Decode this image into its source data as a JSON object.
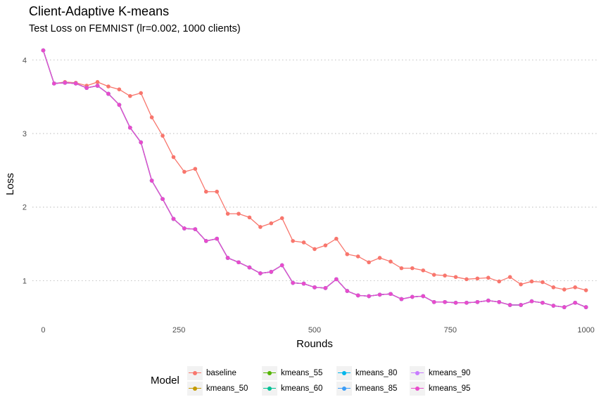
{
  "chart_data": {
    "type": "line",
    "title": "Client-Adaptive K-means",
    "subtitle": "Test Loss on FEMNIST (lr=0.002, 1000 clients)",
    "xlabel": "Rounds",
    "ylabel": "Loss",
    "xlim": [
      -20,
      1020
    ],
    "ylim": [
      0.45,
      4.28
    ],
    "x_ticks": [
      0,
      250,
      500,
      750,
      1000
    ],
    "y_ticks": [
      1,
      2,
      3,
      4
    ],
    "grid": "horizontal-dotted",
    "legend_title": "Model",
    "legend_position": "bottom",
    "x": [
      0,
      20,
      40,
      60,
      80,
      100,
      120,
      140,
      160,
      180,
      200,
      220,
      240,
      260,
      280,
      300,
      320,
      340,
      360,
      380,
      400,
      420,
      440,
      460,
      480,
      500,
      520,
      540,
      560,
      580,
      600,
      620,
      640,
      660,
      680,
      700,
      720,
      740,
      760,
      780,
      800,
      820,
      840,
      860,
      880,
      900,
      920,
      940,
      960,
      980,
      1000
    ],
    "series": [
      {
        "name": "baseline",
        "color": "#F8766D",
        "values": [
          4.13,
          3.68,
          3.7,
          3.69,
          3.65,
          3.7,
          3.64,
          3.6,
          3.51,
          3.55,
          3.22,
          2.97,
          2.68,
          2.48,
          2.52,
          2.21,
          2.21,
          1.91,
          1.91,
          1.86,
          1.73,
          1.78,
          1.85,
          1.54,
          1.52,
          1.43,
          1.48,
          1.57,
          1.36,
          1.33,
          1.25,
          1.31,
          1.26,
          1.17,
          1.17,
          1.14,
          1.08,
          1.07,
          1.05,
          1.02,
          1.03,
          1.04,
          0.99,
          1.05,
          0.95,
          0.99,
          0.98,
          0.91,
          0.88,
          0.91,
          0.87
        ]
      },
      {
        "name": "kmeans_50",
        "color": "#C49A00",
        "values": [
          4.13,
          3.68,
          3.69,
          3.68,
          3.62,
          3.65,
          3.54,
          3.39,
          3.08,
          2.88,
          2.36,
          2.11,
          1.84,
          1.71,
          1.7,
          1.54,
          1.57,
          1.31,
          1.25,
          1.18,
          1.1,
          1.12,
          1.21,
          0.97,
          0.96,
          0.91,
          0.9,
          1.02,
          0.86,
          0.8,
          0.79,
          0.81,
          0.82,
          0.75,
          0.78,
          0.79,
          0.71,
          0.71,
          0.7,
          0.7,
          0.71,
          0.73,
          0.71,
          0.67,
          0.67,
          0.72,
          0.7,
          0.66,
          0.64,
          0.7,
          0.64
        ]
      },
      {
        "name": "kmeans_55",
        "color": "#53B400",
        "values": [
          4.13,
          3.68,
          3.69,
          3.68,
          3.62,
          3.65,
          3.54,
          3.39,
          3.08,
          2.88,
          2.36,
          2.11,
          1.84,
          1.71,
          1.7,
          1.54,
          1.57,
          1.31,
          1.25,
          1.18,
          1.1,
          1.12,
          1.21,
          0.97,
          0.96,
          0.91,
          0.9,
          1.02,
          0.86,
          0.8,
          0.79,
          0.81,
          0.82,
          0.75,
          0.78,
          0.79,
          0.71,
          0.71,
          0.7,
          0.7,
          0.71,
          0.73,
          0.71,
          0.67,
          0.67,
          0.72,
          0.7,
          0.66,
          0.64,
          0.7,
          0.64
        ]
      },
      {
        "name": "kmeans_60",
        "color": "#00C094",
        "values": [
          4.13,
          3.68,
          3.69,
          3.68,
          3.62,
          3.65,
          3.54,
          3.39,
          3.08,
          2.88,
          2.36,
          2.11,
          1.84,
          1.71,
          1.7,
          1.54,
          1.57,
          1.31,
          1.25,
          1.18,
          1.1,
          1.12,
          1.21,
          0.97,
          0.96,
          0.91,
          0.9,
          1.02,
          0.86,
          0.8,
          0.79,
          0.81,
          0.82,
          0.75,
          0.78,
          0.79,
          0.71,
          0.71,
          0.7,
          0.7,
          0.71,
          0.73,
          0.71,
          0.67,
          0.67,
          0.72,
          0.7,
          0.66,
          0.64,
          0.7,
          0.64
        ]
      },
      {
        "name": "kmeans_80",
        "color": "#00B6EB",
        "values": [
          4.13,
          3.68,
          3.69,
          3.68,
          3.62,
          3.65,
          3.54,
          3.39,
          3.08,
          2.88,
          2.36,
          2.11,
          1.84,
          1.71,
          1.7,
          1.54,
          1.57,
          1.31,
          1.25,
          1.18,
          1.1,
          1.12,
          1.21,
          0.97,
          0.96,
          0.91,
          0.9,
          1.02,
          0.86,
          0.8,
          0.79,
          0.81,
          0.82,
          0.75,
          0.78,
          0.79,
          0.71,
          0.71,
          0.7,
          0.7,
          0.71,
          0.73,
          0.71,
          0.67,
          0.67,
          0.72,
          0.7,
          0.66,
          0.64,
          0.7,
          0.64
        ]
      },
      {
        "name": "kmeans_85",
        "color": "#3C9DF7",
        "values": [
          4.13,
          3.68,
          3.69,
          3.68,
          3.62,
          3.65,
          3.54,
          3.39,
          3.08,
          2.88,
          2.36,
          2.11,
          1.84,
          1.71,
          1.7,
          1.54,
          1.57,
          1.31,
          1.25,
          1.18,
          1.1,
          1.12,
          1.21,
          0.97,
          0.96,
          0.91,
          0.9,
          1.02,
          0.86,
          0.8,
          0.79,
          0.81,
          0.82,
          0.75,
          0.78,
          0.79,
          0.71,
          0.71,
          0.7,
          0.7,
          0.71,
          0.73,
          0.71,
          0.67,
          0.67,
          0.72,
          0.7,
          0.66,
          0.64,
          0.7,
          0.64
        ]
      },
      {
        "name": "kmeans_90",
        "color": "#C77CFF",
        "values": [
          4.13,
          3.68,
          3.69,
          3.68,
          3.62,
          3.65,
          3.54,
          3.39,
          3.08,
          2.88,
          2.36,
          2.11,
          1.84,
          1.71,
          1.7,
          1.54,
          1.57,
          1.31,
          1.25,
          1.18,
          1.1,
          1.12,
          1.21,
          0.97,
          0.96,
          0.91,
          0.9,
          1.02,
          0.86,
          0.8,
          0.79,
          0.81,
          0.82,
          0.75,
          0.78,
          0.79,
          0.71,
          0.71,
          0.7,
          0.7,
          0.71,
          0.73,
          0.71,
          0.67,
          0.67,
          0.72,
          0.7,
          0.66,
          0.64,
          0.7,
          0.64
        ]
      },
      {
        "name": "kmeans_95",
        "color": "#E84CCB",
        "values": [
          4.13,
          3.68,
          3.69,
          3.68,
          3.62,
          3.65,
          3.54,
          3.39,
          3.08,
          2.88,
          2.36,
          2.11,
          1.84,
          1.71,
          1.7,
          1.54,
          1.57,
          1.31,
          1.25,
          1.18,
          1.1,
          1.12,
          1.21,
          0.97,
          0.96,
          0.91,
          0.9,
          1.02,
          0.86,
          0.8,
          0.79,
          0.81,
          0.82,
          0.75,
          0.78,
          0.79,
          0.71,
          0.71,
          0.7,
          0.7,
          0.71,
          0.73,
          0.71,
          0.67,
          0.67,
          0.72,
          0.7,
          0.66,
          0.64,
          0.7,
          0.64
        ]
      }
    ]
  }
}
